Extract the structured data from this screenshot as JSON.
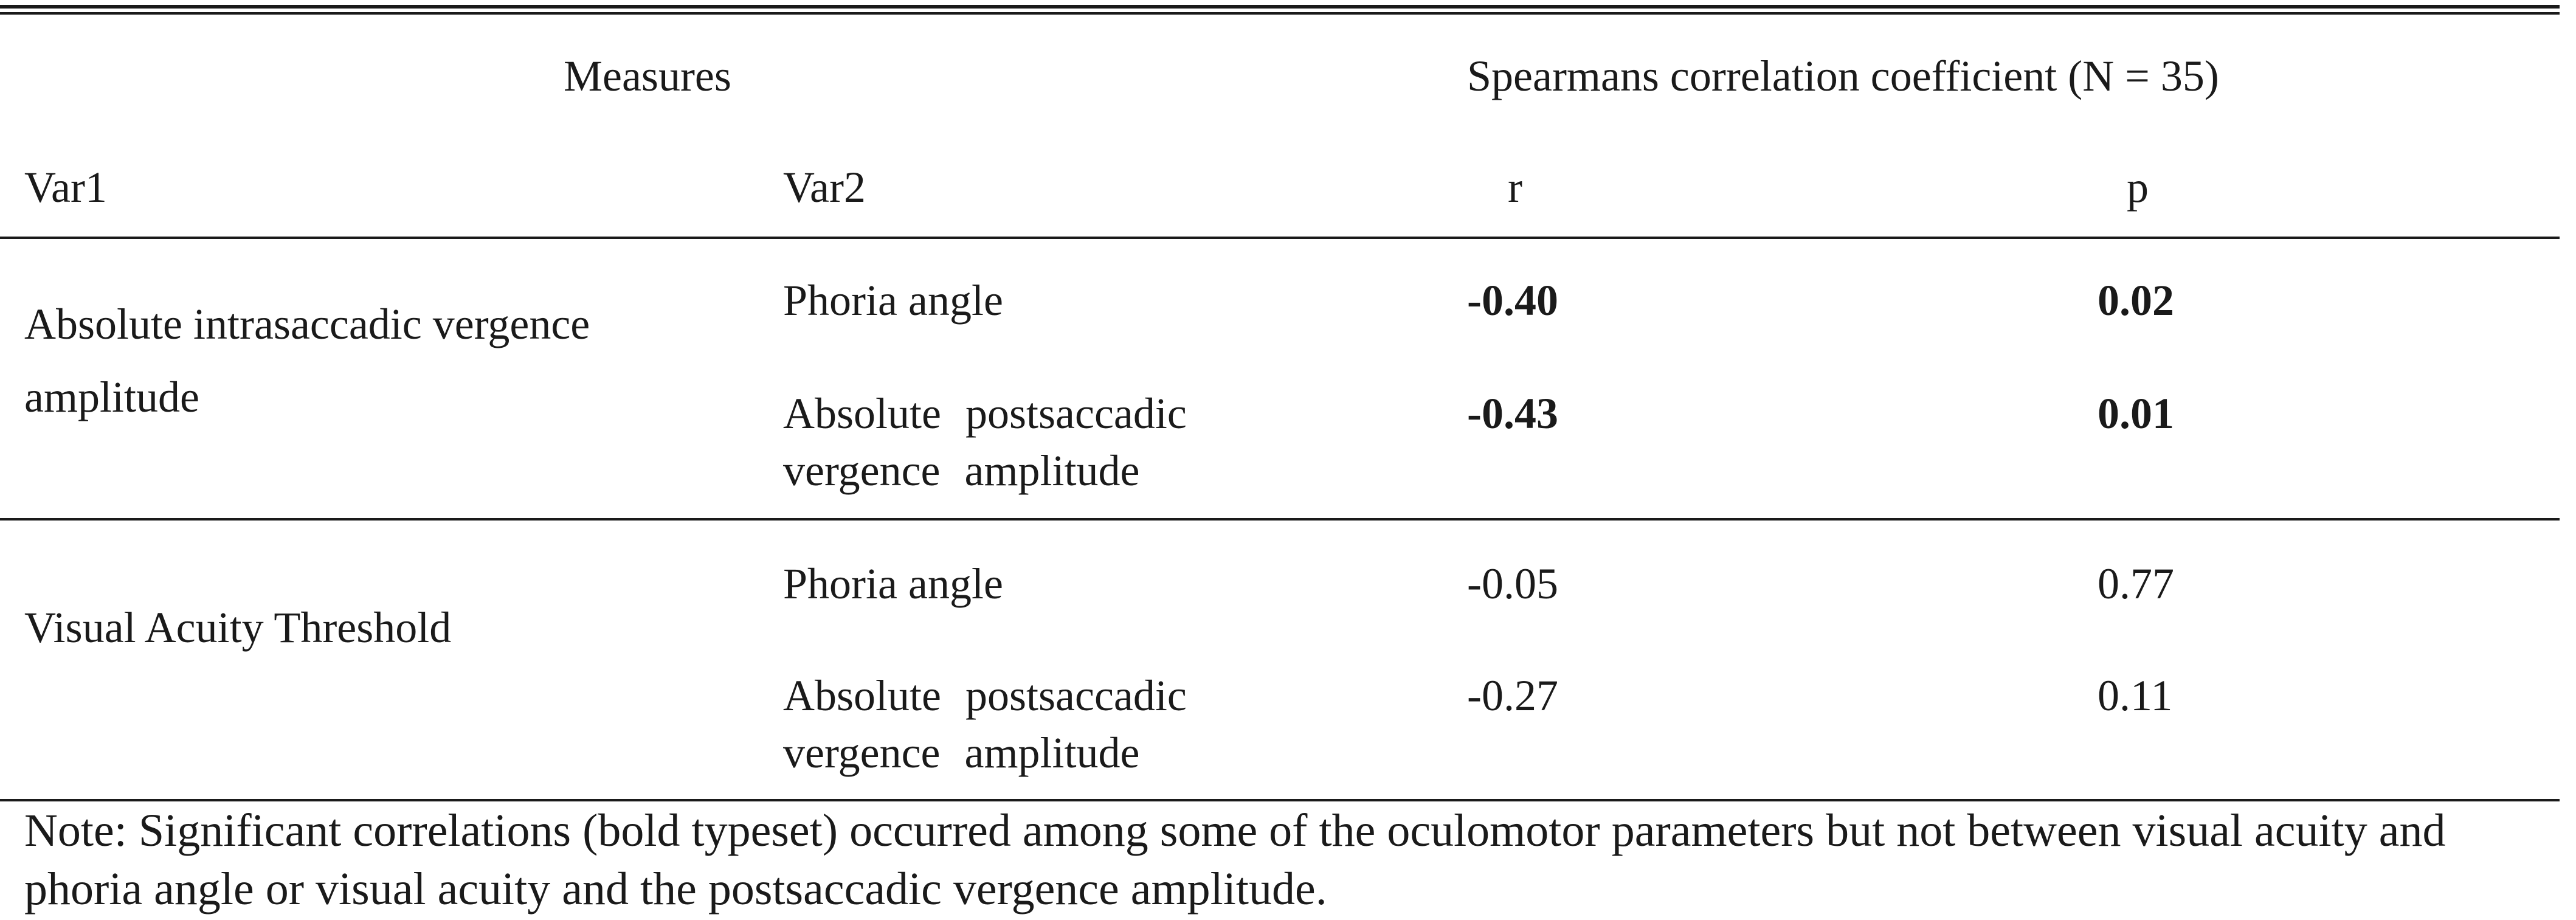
{
  "table": {
    "header": {
      "group_left": "Measures",
      "group_right": "Spearmans correlation coefficient (N = 35)",
      "col_var1": "Var1",
      "col_var2": "Var2",
      "col_r": "r",
      "col_p": "p"
    },
    "groups": [
      {
        "var1": "Absolute intrasaccadic vergence amplitude",
        "rows": [
          {
            "var2": "Phoria angle",
            "r": "-0.40",
            "p": "0.02",
            "bold": true
          },
          {
            "var2": "Absolute postsaccadic vergence amplitude",
            "r": "-0.43",
            "p": "0.01",
            "bold": true
          }
        ]
      },
      {
        "var1": "Visual Acuity Threshold",
        "rows": [
          {
            "var2": "Phoria angle",
            "r": "-0.05",
            "p": "0.77",
            "bold": false
          },
          {
            "var2": "Absolute postsaccadic vergence amplitude",
            "r": "-0.27",
            "p": "0.11",
            "bold": false
          }
        ]
      }
    ],
    "note": "Note: Significant correlations (bold typeset) occurred among some of the oculomotor parameters but not between visual acuity and phoria angle or visual acuity and the postsaccadic vergence amplitude."
  }
}
